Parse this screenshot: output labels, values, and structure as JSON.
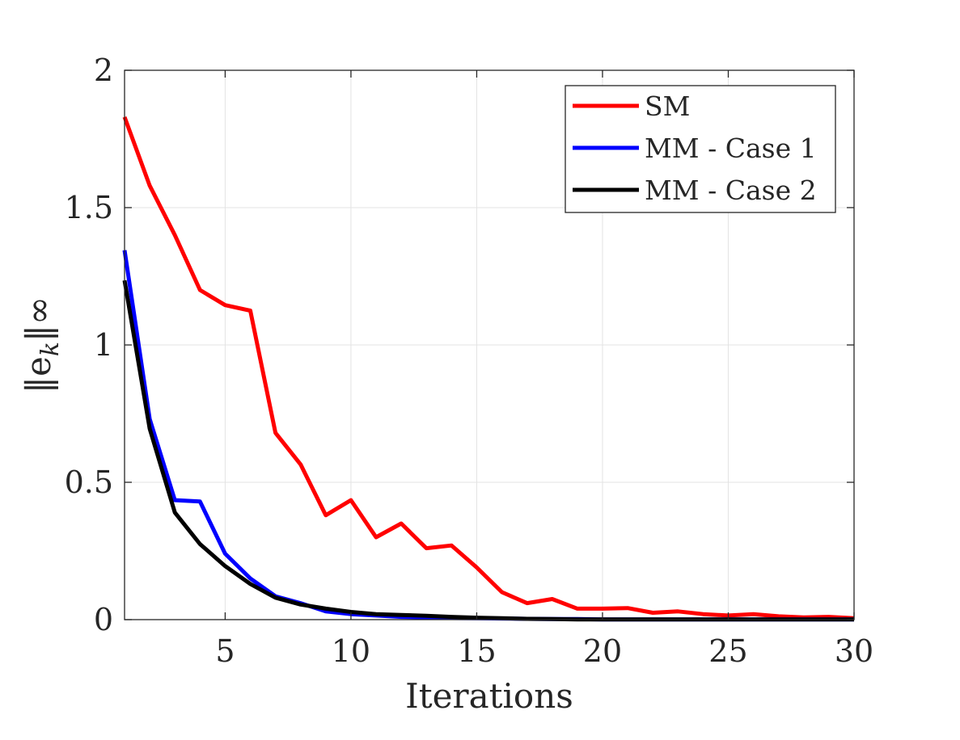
{
  "chart_data": {
    "type": "line",
    "xlabel": "Iterations",
    "ylabel": "‖e",
    "ylabel_sub": "k",
    "ylabel_suffix": "‖∞",
    "xlim": [
      1,
      30
    ],
    "ylim": [
      0,
      2
    ],
    "x_ticks": [
      5,
      10,
      15,
      20,
      25,
      30
    ],
    "y_ticks": [
      0,
      0.5,
      1,
      1.5,
      2
    ],
    "grid": true,
    "legend_position": "top-right",
    "x": [
      1,
      2,
      3,
      4,
      5,
      6,
      7,
      8,
      9,
      10,
      11,
      12,
      13,
      14,
      15,
      16,
      17,
      18,
      19,
      20,
      21,
      22,
      23,
      24,
      25,
      26,
      27,
      28,
      29,
      30
    ],
    "series": [
      {
        "name": "SM",
        "color": "#ff0000",
        "values": [
          1.83,
          1.58,
          1.4,
          1.2,
          1.145,
          1.125,
          0.68,
          0.565,
          0.38,
          0.435,
          0.3,
          0.35,
          0.26,
          0.27,
          0.19,
          0.1,
          0.06,
          0.075,
          0.04,
          0.04,
          0.042,
          0.025,
          0.03,
          0.02,
          0.015,
          0.02,
          0.012,
          0.008,
          0.01,
          0.005
        ]
      },
      {
        "name": "MM - Case 1",
        "color": "#0000ff",
        "values": [
          1.345,
          0.73,
          0.435,
          0.43,
          0.24,
          0.15,
          0.085,
          0.06,
          0.03,
          0.02,
          0.015,
          0.01,
          0.008,
          0.006,
          0.005,
          0.004,
          0.003,
          0.002,
          0.002,
          0.001,
          0.001,
          0.001,
          0.001,
          0.001,
          0.001,
          0.001,
          0.001,
          0.001,
          0.001,
          0.001
        ]
      },
      {
        "name": "MM - Case 2",
        "color": "#000000",
        "values": [
          1.235,
          0.695,
          0.39,
          0.275,
          0.195,
          0.13,
          0.08,
          0.055,
          0.04,
          0.028,
          0.02,
          0.017,
          0.014,
          0.01,
          0.007,
          0.005,
          0.003,
          0.002,
          0.001,
          0.001,
          0.001,
          0.0005,
          0.0005,
          0.0005,
          0.0005,
          0.0005,
          0.0005,
          0.0005,
          0.0005,
          0.0005
        ]
      }
    ]
  }
}
